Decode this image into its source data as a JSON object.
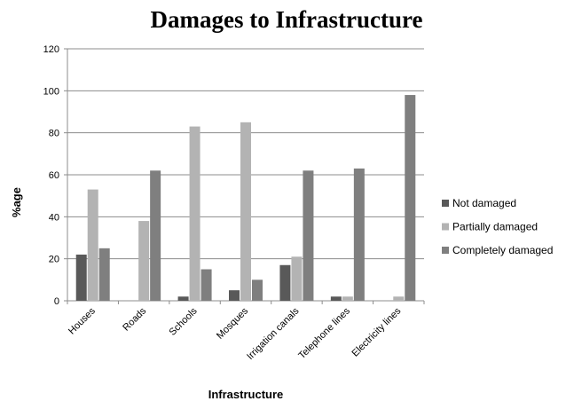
{
  "chart_data": {
    "type": "bar",
    "title": "Damages to Infrastructure",
    "xlabel": "Infrastructure",
    "ylabel": "%age",
    "ylim": [
      0,
      120
    ],
    "yticks": [
      0,
      20,
      40,
      60,
      80,
      100,
      120
    ],
    "grid": true,
    "legend_position": "right",
    "categories": [
      "Houses",
      "Roads",
      "Schools",
      "Mosques",
      "Irrigation canals",
      "Telephone lines",
      "Electricity lines"
    ],
    "series": [
      {
        "name": "Not damaged",
        "color": "#595959",
        "values": [
          22,
          0,
          2,
          5,
          17,
          2,
          0
        ]
      },
      {
        "name": "Partially damaged",
        "color": "#b3b3b3",
        "values": [
          53,
          38,
          83,
          85,
          21,
          2,
          2
        ]
      },
      {
        "name": "Completely damaged",
        "color": "#7f7f7f",
        "values": [
          25,
          62,
          15,
          10,
          62,
          63,
          98
        ]
      }
    ]
  }
}
